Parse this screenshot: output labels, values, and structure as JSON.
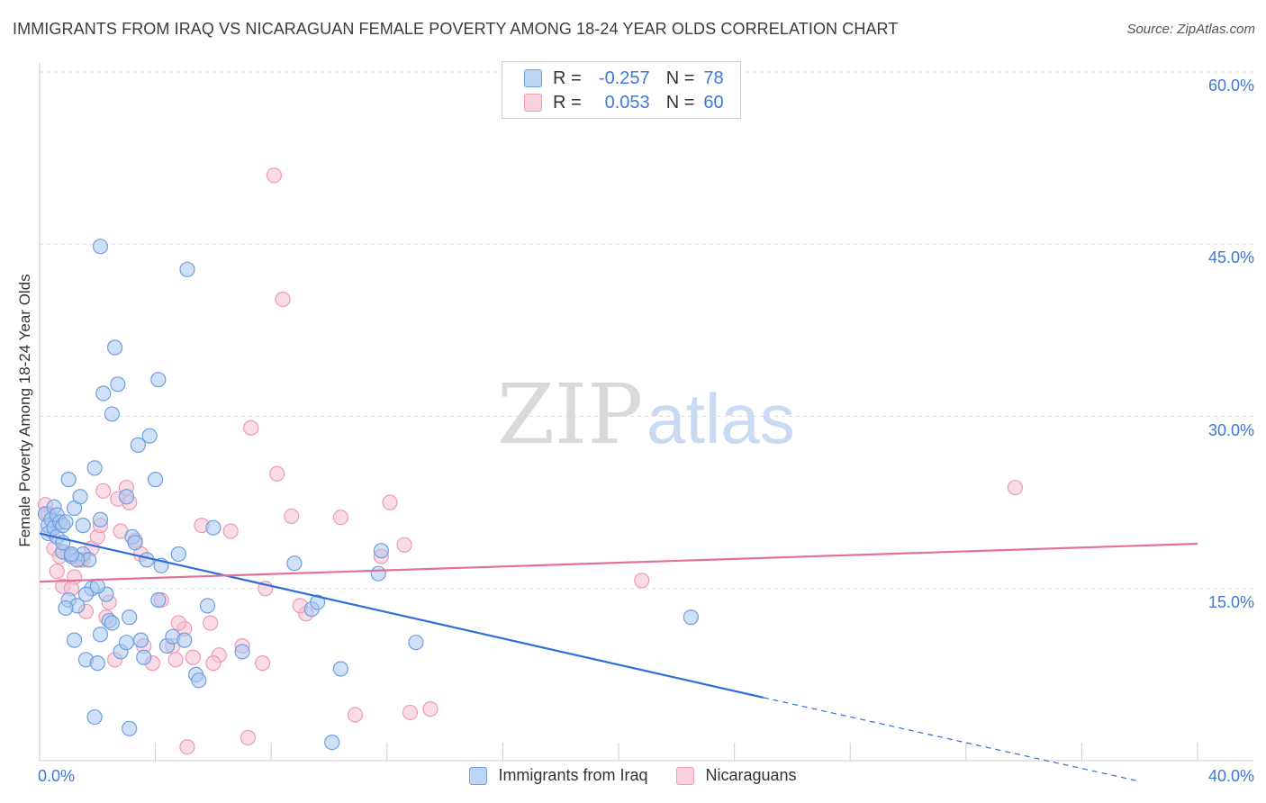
{
  "title": "IMMIGRANTS FROM IRAQ VS NICARAGUAN FEMALE POVERTY AMONG 18-24 YEAR OLDS CORRELATION CHART",
  "source": "Source: ZipAtlas.com",
  "watermark": {
    "zip": "ZIP",
    "atlas": "atlas"
  },
  "colors": {
    "blue_fill": "#a9c8f0",
    "blue_stroke": "#6f9fe0",
    "blue_line": "#2f6fd6",
    "pink_fill": "#f6bfd1",
    "pink_stroke": "#ee9ab6",
    "pink_line": "#e2709a",
    "label_blue": "#3d78d8",
    "grid": "#dddddd"
  },
  "legend_top": [
    {
      "label": "R =",
      "r": "-0.257",
      "n_label": "N =",
      "n": "78",
      "color": "blue"
    },
    {
      "label": "R =",
      "r": "0.053",
      "n_label": "N =",
      "n": "60",
      "color": "pink"
    }
  ],
  "chart_data": {
    "type": "scatter",
    "title": "IMMIGRANTS FROM IRAQ VS NICARAGUAN FEMALE POVERTY AMONG 18-24 YEAR OLDS CORRELATION CHART",
    "xlabel": "",
    "ylabel": "Female Poverty Among 18-24 Year Olds",
    "xlim": [
      0,
      40
    ],
    "ylim": [
      0,
      60
    ],
    "x_tick_labels": [
      "0.0%",
      "40.0%"
    ],
    "y_tick_labels": [
      "15.0%",
      "30.0%",
      "45.0%",
      "60.0%"
    ],
    "y_ticks": [
      15,
      30,
      45,
      60
    ],
    "legend": [
      "Immigrants from Iraq",
      "Nicaraguans"
    ],
    "series": [
      {
        "name": "Immigrants from Iraq",
        "color": "blue",
        "trend": {
          "x0": 0,
          "y0": 19.8,
          "x1": 25,
          "y1": 5.5,
          "dash_to_x": 38.0,
          "dash_to_y": -1.8
        },
        "points": [
          [
            0.2,
            21.5
          ],
          [
            0.3,
            20.5
          ],
          [
            0.3,
            19.8
          ],
          [
            0.4,
            21.0
          ],
          [
            0.5,
            20.3
          ],
          [
            0.5,
            22.1
          ],
          [
            0.6,
            19.5
          ],
          [
            0.6,
            21.4
          ],
          [
            0.7,
            20.8
          ],
          [
            0.8,
            18.2
          ],
          [
            0.8,
            20.5
          ],
          [
            0.9,
            20.8
          ],
          [
            1.0,
            24.5
          ],
          [
            1.0,
            14.0
          ],
          [
            1.1,
            17.8
          ],
          [
            1.2,
            22.0
          ],
          [
            1.2,
            10.5
          ],
          [
            1.3,
            13.5
          ],
          [
            1.4,
            23.0
          ],
          [
            1.5,
            18.0
          ],
          [
            1.6,
            8.8
          ],
          [
            1.7,
            17.5
          ],
          [
            1.8,
            15.0
          ],
          [
            1.9,
            25.5
          ],
          [
            2.0,
            8.5
          ],
          [
            2.1,
            21.0
          ],
          [
            2.2,
            32.0
          ],
          [
            2.3,
            14.5
          ],
          [
            2.4,
            12.2
          ],
          [
            2.5,
            30.2
          ],
          [
            2.6,
            36.0
          ],
          [
            2.7,
            32.8
          ],
          [
            2.8,
            9.5
          ],
          [
            3.0,
            23.0
          ],
          [
            3.1,
            12.5
          ],
          [
            3.2,
            19.5
          ],
          [
            3.3,
            19.0
          ],
          [
            3.4,
            27.5
          ],
          [
            3.5,
            10.5
          ],
          [
            3.6,
            9.0
          ],
          [
            3.7,
            17.5
          ],
          [
            3.8,
            28.3
          ],
          [
            4.0,
            24.5
          ],
          [
            4.1,
            14.0
          ],
          [
            4.2,
            17.0
          ],
          [
            4.4,
            10.0
          ],
          [
            4.6,
            10.8
          ],
          [
            4.8,
            18.0
          ],
          [
            5.0,
            10.5
          ],
          [
            5.4,
            7.5
          ],
          [
            5.5,
            7.0
          ],
          [
            5.8,
            13.5
          ],
          [
            6.0,
            20.3
          ],
          [
            7.0,
            9.5
          ],
          [
            8.8,
            17.2
          ],
          [
            9.4,
            13.2
          ],
          [
            9.6,
            13.8
          ],
          [
            10.4,
            8.0
          ],
          [
            11.7,
            16.3
          ],
          [
            11.8,
            18.3
          ],
          [
            13.0,
            10.3
          ],
          [
            22.5,
            12.5
          ],
          [
            0.9,
            13.3
          ],
          [
            1.3,
            17.5
          ],
          [
            1.5,
            20.5
          ],
          [
            2.0,
            15.2
          ],
          [
            2.5,
            12.0
          ],
          [
            3.0,
            10.3
          ],
          [
            1.1,
            18.0
          ],
          [
            1.9,
            3.8
          ],
          [
            3.1,
            2.8
          ],
          [
            10.1,
            1.6
          ],
          [
            2.1,
            44.8
          ],
          [
            5.1,
            42.8
          ],
          [
            4.1,
            33.2
          ],
          [
            2.1,
            11.0
          ],
          [
            1.6,
            14.5
          ],
          [
            0.8,
            19.0
          ]
        ]
      },
      {
        "name": "Nicaraguans",
        "color": "pink",
        "trend": {
          "x0": 0,
          "y0": 15.6,
          "x1": 40,
          "y1": 18.9
        },
        "points": [
          [
            0.2,
            22.3
          ],
          [
            0.3,
            21.5
          ],
          [
            0.4,
            20.0
          ],
          [
            0.5,
            18.5
          ],
          [
            0.6,
            16.5
          ],
          [
            0.8,
            15.2
          ],
          [
            1.0,
            18.0
          ],
          [
            1.2,
            16.0
          ],
          [
            1.4,
            17.5
          ],
          [
            1.6,
            13.0
          ],
          [
            1.8,
            18.5
          ],
          [
            2.0,
            19.5
          ],
          [
            2.2,
            23.5
          ],
          [
            2.4,
            13.8
          ],
          [
            2.6,
            8.8
          ],
          [
            2.8,
            20.0
          ],
          [
            3.0,
            23.8
          ],
          [
            3.3,
            19.2
          ],
          [
            3.6,
            10.0
          ],
          [
            3.9,
            8.5
          ],
          [
            4.2,
            14.0
          ],
          [
            4.6,
            10.0
          ],
          [
            5.0,
            11.5
          ],
          [
            5.3,
            9.0
          ],
          [
            5.6,
            20.5
          ],
          [
            5.9,
            12.0
          ],
          [
            6.2,
            9.2
          ],
          [
            6.6,
            20.0
          ],
          [
            7.0,
            10.0
          ],
          [
            7.3,
            29.0
          ],
          [
            7.7,
            8.5
          ],
          [
            8.2,
            25.0
          ],
          [
            8.7,
            21.3
          ],
          [
            9.2,
            12.8
          ],
          [
            10.4,
            21.2
          ],
          [
            10.9,
            4.0
          ],
          [
            11.8,
            17.8
          ],
          [
            12.6,
            18.8
          ],
          [
            12.8,
            4.2
          ],
          [
            13.5,
            4.5
          ],
          [
            8.1,
            51.0
          ],
          [
            8.4,
            40.2
          ],
          [
            20.8,
            15.7
          ],
          [
            33.7,
            23.8
          ],
          [
            12.1,
            22.5
          ],
          [
            3.5,
            18.0
          ],
          [
            4.8,
            12.0
          ],
          [
            6.0,
            8.5
          ],
          [
            7.8,
            15.0
          ],
          [
            2.1,
            20.5
          ],
          [
            1.1,
            15.0
          ],
          [
            2.7,
            22.8
          ],
          [
            3.1,
            22.5
          ],
          [
            5.1,
            1.2
          ],
          [
            7.2,
            2.0
          ],
          [
            4.7,
            8.8
          ],
          [
            9.0,
            13.5
          ],
          [
            1.5,
            17.5
          ],
          [
            0.7,
            17.8
          ],
          [
            2.3,
            12.5
          ]
        ]
      }
    ]
  }
}
